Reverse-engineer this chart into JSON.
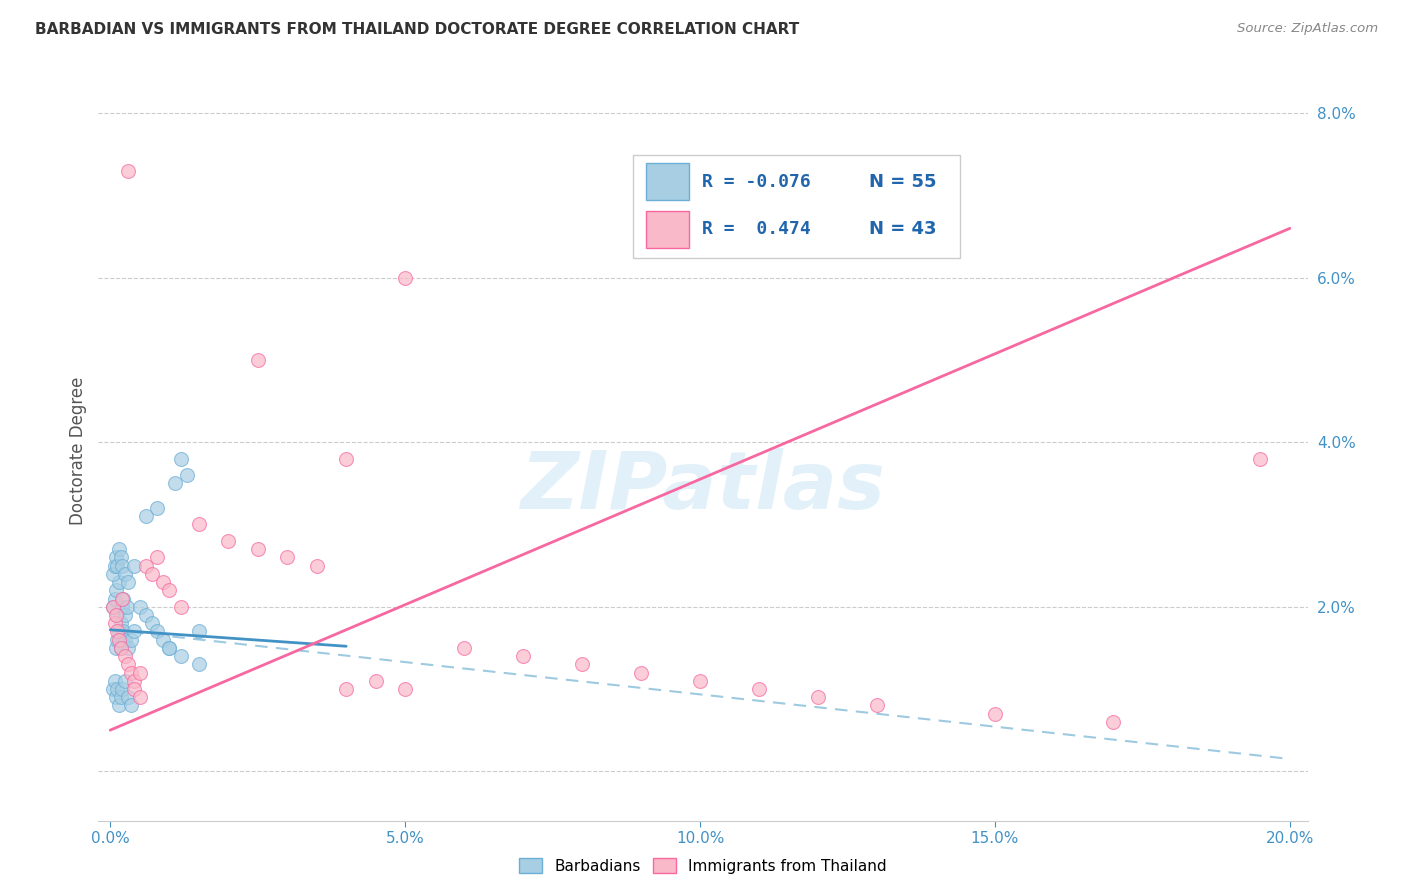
{
  "title": "BARBADIAN VS IMMIGRANTS FROM THAILAND DOCTORATE DEGREE CORRELATION CHART",
  "source": "Source: ZipAtlas.com",
  "ylabel": "Doctorate Degree",
  "watermark": "ZIPatlas",
  "xlim": [
    0,
    20.0
  ],
  "ylim": [
    0,
    8.0
  ],
  "yticks": [
    2.0,
    4.0,
    6.0,
    8.0
  ],
  "xticks": [
    0,
    5,
    10,
    15,
    20
  ],
  "xtick_labels": [
    "0.0%",
    "5.0%",
    "10.0%",
    "15.0%",
    "20.0%"
  ],
  "ytick_labels": [
    "2.0%",
    "4.0%",
    "6.0%",
    "8.0%"
  ],
  "color_blue_fill": "#a8cee3",
  "color_blue_edge": "#6baed6",
  "color_blue_line": "#4292c6",
  "color_pink_fill": "#f9b9c8",
  "color_pink_edge": "#f768a1",
  "color_pink_line": "#f768a1",
  "color_dashed": "#9ecae1",
  "color_grid": "#cccccc",
  "color_tick": "#4292c6",
  "legend_R1": "R = -0.076",
  "legend_N1": "N = 55",
  "legend_R2": "R =  0.474",
  "legend_N2": "N = 43",
  "blue_trend_x0": 0,
  "blue_trend_y0": 1.72,
  "blue_trend_x1": 4.0,
  "blue_trend_y1": 1.52,
  "blue_dash_x0": 0,
  "blue_dash_y0": 1.72,
  "blue_dash_x1": 20.0,
  "blue_dash_y1": 0.15,
  "pink_trend_x0": 0,
  "pink_trend_y0": 0.5,
  "pink_trend_x1": 20.0,
  "pink_trend_y1": 6.6,
  "scatter_blue_x": [
    0.05,
    0.08,
    0.1,
    0.12,
    0.15,
    0.18,
    0.2,
    0.22,
    0.25,
    0.28,
    0.1,
    0.12,
    0.15,
    0.18,
    0.2,
    0.22,
    0.25,
    0.3,
    0.35,
    0.4,
    0.05,
    0.08,
    0.1,
    0.12,
    0.15,
    0.18,
    0.2,
    0.25,
    0.3,
    0.35,
    0.05,
    0.08,
    0.1,
    0.12,
    0.15,
    0.18,
    0.2,
    0.25,
    0.3,
    0.4,
    0.5,
    0.6,
    0.7,
    0.8,
    0.9,
    1.0,
    1.1,
    1.2,
    1.3,
    1.5,
    0.6,
    0.8,
    1.0,
    1.2,
    1.5
  ],
  "scatter_blue_y": [
    2.0,
    2.1,
    2.2,
    1.9,
    2.3,
    1.8,
    2.0,
    2.1,
    1.9,
    2.0,
    1.5,
    1.6,
    1.7,
    1.5,
    1.6,
    1.7,
    1.6,
    1.5,
    1.6,
    1.7,
    1.0,
    1.1,
    0.9,
    1.0,
    0.8,
    0.9,
    1.0,
    1.1,
    0.9,
    0.8,
    2.4,
    2.5,
    2.6,
    2.5,
    2.7,
    2.6,
    2.5,
    2.4,
    2.3,
    2.5,
    2.0,
    1.9,
    1.8,
    1.7,
    1.6,
    1.5,
    3.5,
    3.8,
    3.6,
    1.7,
    3.1,
    3.2,
    1.5,
    1.4,
    1.3
  ],
  "scatter_pink_x": [
    0.05,
    0.08,
    0.1,
    0.12,
    0.15,
    0.18,
    0.2,
    0.25,
    0.3,
    0.35,
    0.4,
    0.5,
    0.6,
    0.7,
    0.8,
    0.9,
    1.0,
    1.2,
    1.5,
    2.0,
    2.5,
    3.0,
    3.5,
    4.0,
    4.5,
    5.0,
    6.0,
    7.0,
    8.0,
    9.0,
    10.0,
    11.0,
    12.0,
    13.0,
    15.0,
    17.0,
    19.5,
    0.3,
    0.4,
    0.5,
    2.5,
    4.0,
    5.0
  ],
  "scatter_pink_y": [
    2.0,
    1.8,
    1.9,
    1.7,
    1.6,
    1.5,
    2.1,
    1.4,
    1.3,
    1.2,
    1.1,
    1.2,
    2.5,
    2.4,
    2.6,
    2.3,
    2.2,
    2.0,
    3.0,
    2.8,
    2.7,
    2.6,
    2.5,
    1.0,
    1.1,
    6.0,
    1.5,
    1.4,
    1.3,
    1.2,
    1.1,
    1.0,
    0.9,
    0.8,
    0.7,
    0.6,
    3.8,
    7.3,
    1.0,
    0.9,
    5.0,
    3.8,
    1.0
  ]
}
